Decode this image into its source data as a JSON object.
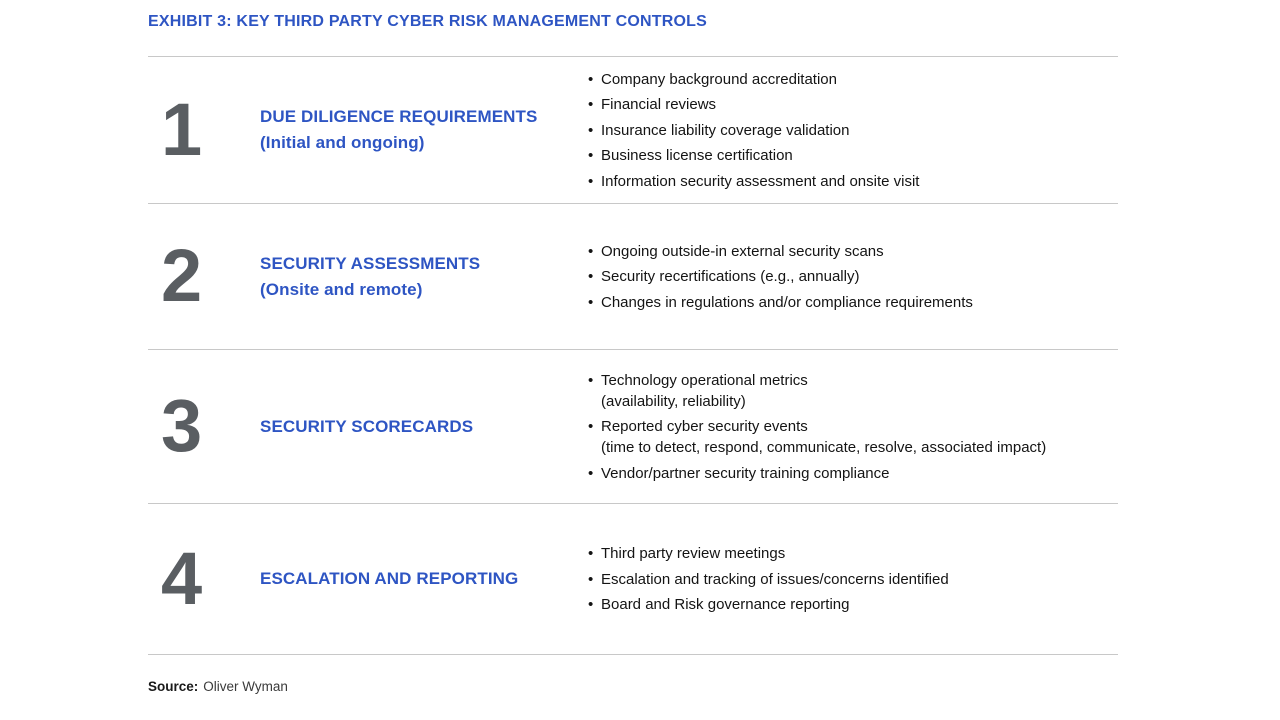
{
  "header": {
    "title": "EXHIBIT 3: KEY THIRD PARTY CYBER RISK MANAGEMENT CONTROLS"
  },
  "icons": {
    "bullet": "•"
  },
  "colors": {
    "accent_blue": "#2e55c3",
    "number_gray": "#5a5e62",
    "divider_gray": "#c8c8c8",
    "text_black": "#141414"
  },
  "rows": [
    {
      "number": "1",
      "heading": "DUE DILIGENCE REQUIREMENTS",
      "subheading": "(Initial and ongoing)",
      "bullets": [
        "Company background accreditation",
        "Financial reviews",
        "Insurance liability coverage validation",
        "Business license certification",
        "Information security assessment and onsite visit"
      ]
    },
    {
      "number": "2",
      "heading": "SECURITY ASSESSMENTS",
      "subheading": "(Onsite and remote)",
      "bullets": [
        "Ongoing outside-in external security scans",
        "Security recertifications (e.g., annually)",
        "Changes in regulations and/or compliance requirements"
      ]
    },
    {
      "number": "3",
      "heading": "SECURITY SCORECARDS",
      "subheading": "",
      "bullets": [
        "Technology operational metrics\n(availability, reliability)",
        "Reported cyber security events\n(time to detect, respond, communicate, resolve, associated impact)",
        "Vendor/partner security training compliance"
      ]
    },
    {
      "number": "4",
      "heading": "ESCALATION AND REPORTING",
      "subheading": "",
      "bullets": [
        "Third party review meetings",
        "Escalation and tracking of issues/concerns identified",
        "Board and Risk governance reporting"
      ]
    }
  ],
  "footer": {
    "source_label": "Source:",
    "source_value": "Oliver Wyman"
  }
}
